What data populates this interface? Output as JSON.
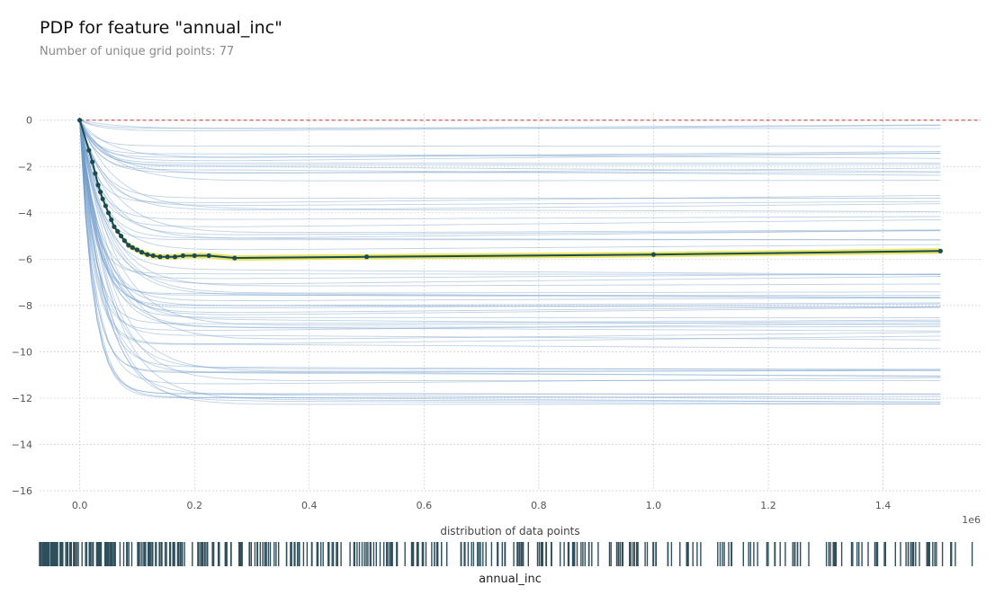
{
  "header": {
    "title": "PDP for feature \"annual_inc\"",
    "subtitle": "Number of unique grid points: 77"
  },
  "colors": {
    "ice_lines": "#6f9bc9",
    "pdp_line": "#1a4a53",
    "pdp_band": "#e3e04a",
    "baseline": "#c0392b",
    "rug": "#2f4f5c",
    "grid": "#c8ccd4"
  },
  "chart_data": {
    "type": "line",
    "title": "PDP for feature \"annual_inc\"",
    "subtitle": "Number of unique grid points: 77",
    "xlabel": "annual_inc",
    "x_offset_label": "1e6",
    "xlim": [
      -0.07,
      1.57
    ],
    "ylim": [
      -16,
      0.3
    ],
    "x_ticks": [
      0.0,
      0.2,
      0.4,
      0.6,
      0.8,
      1.0,
      1.2,
      1.4
    ],
    "x_tick_labels": [
      "0.0",
      "0.2",
      "0.4",
      "0.6",
      "0.8",
      "1.0",
      "1.2",
      "1.4"
    ],
    "y_ticks": [
      0,
      -2,
      -4,
      -6,
      -8,
      -10,
      -12,
      -14,
      -16
    ],
    "y_tick_labels": [
      "0",
      "−2",
      "−4",
      "−6",
      "−8",
      "−10",
      "−12",
      "−14",
      "−16"
    ],
    "grid": true,
    "baseline_y": 0,
    "pdp": {
      "x": [
        0.0,
        0.016,
        0.022,
        0.027,
        0.032,
        0.036,
        0.04,
        0.045,
        0.05,
        0.055,
        0.06,
        0.066,
        0.072,
        0.078,
        0.085,
        0.092,
        0.1,
        0.108,
        0.118,
        0.128,
        0.14,
        0.153,
        0.166,
        0.18,
        0.2,
        0.225,
        0.27,
        0.5,
        1.0,
        1.5
      ],
      "y": [
        0.0,
        -1.3,
        -1.8,
        -2.3,
        -2.8,
        -3.1,
        -3.4,
        -3.7,
        -4.0,
        -4.3,
        -4.6,
        -4.8,
        -5.0,
        -5.2,
        -5.4,
        -5.5,
        -5.6,
        -5.7,
        -5.8,
        -5.85,
        -5.9,
        -5.9,
        -5.9,
        -5.85,
        -5.85,
        -5.85,
        -5.95,
        -5.9,
        -5.8,
        -5.65
      ],
      "band_halfwidth": 0.12
    },
    "ice": {
      "count": 70,
      "final_values_range": [
        -12.3,
        -0.1
      ]
    },
    "rug": {
      "title": "distribution of data points",
      "xlim": [
        0.0,
        1.5
      ]
    }
  }
}
